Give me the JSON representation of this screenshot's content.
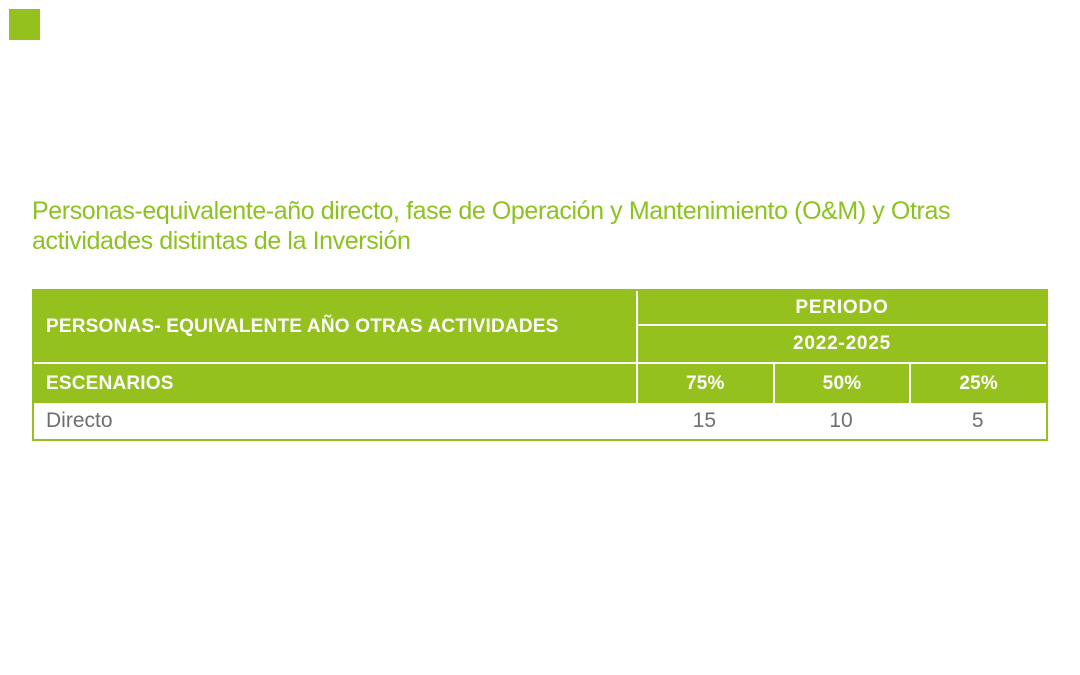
{
  "theme": {
    "green": "#95C11F",
    "title-green": "#8CC21E",
    "gray": "#6D6E71",
    "white": "#FFFFFF",
    "page-bg": "#FFFFFF"
  },
  "logo": {
    "color": "#95C11F"
  },
  "title": {
    "line1": "Personas-equivalente-año directo, fase de Operación y Mantenimiento (O&M) y Otras",
    "line2": "actividades distintas de la Inversión"
  },
  "table": {
    "left_header": "PERSONAS- EQUIVALENTE AÑO OTRAS ACTIVIDADES",
    "period_label": "PERIODO",
    "period_range": "2022-2025",
    "scenarios_label": "ESCENARIOS",
    "scenario_columns": [
      "75%",
      "50%",
      "25%"
    ],
    "rows": [
      {
        "label": "Directo",
        "values": [
          "15",
          "10",
          "5"
        ]
      }
    ]
  },
  "chart_data": {
    "type": "table",
    "title": "Personas-equivalente-año directo, fase de Operación y Mantenimiento (O&M) y Otras actividades distintas de la Inversión",
    "group_header": "PERIODO",
    "period": "2022-2025",
    "columns": [
      "ESCENARIOS",
      "75%",
      "50%",
      "25%"
    ],
    "rows": [
      {
        "ESCENARIOS": "Directo",
        "75%": 15,
        "50%": 10,
        "25%": 5
      }
    ]
  }
}
